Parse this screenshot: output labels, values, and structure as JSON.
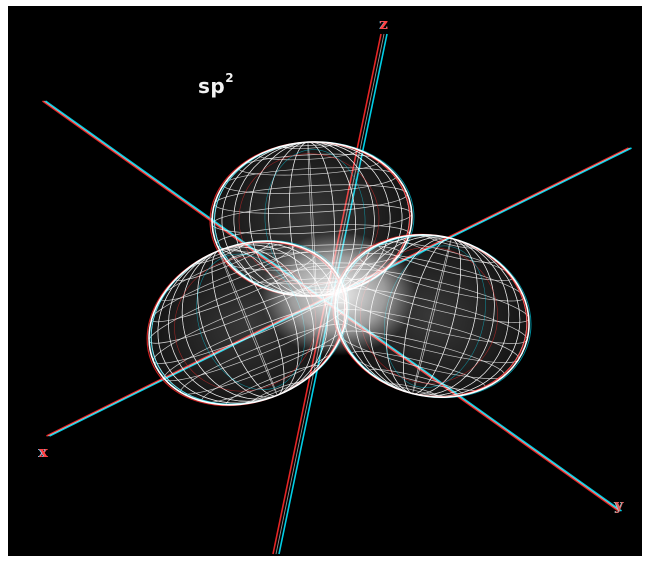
{
  "title": {
    "main": "sp",
    "superscript": "2"
  },
  "axes": {
    "z": {
      "label": "z",
      "cyan_color": "#7fd3ff",
      "red_color": "#ff4040"
    },
    "x": {
      "label": "x",
      "cyan_color": "#7fd3ff",
      "red_color": "#ff4040"
    },
    "y": {
      "label": "y",
      "cyan_color": "#9be0e0",
      "red_color": "#e06060"
    }
  },
  "colors": {
    "background": "#000000",
    "frame": "#ffffff",
    "wireframe": "#ffffff",
    "anaglyph_cyan": "#00e5ff",
    "anaglyph_red": "#ff2a2a"
  }
}
